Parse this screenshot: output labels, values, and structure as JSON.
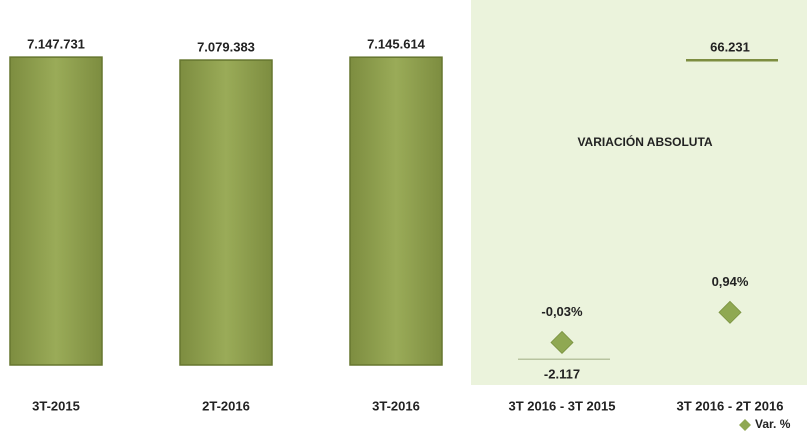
{
  "chart_data": [
    {
      "type": "bar",
      "categories": [
        "3T-2015",
        "2T-2016",
        "3T-2016"
      ],
      "values": [
        7147731,
        7079383,
        7145614
      ],
      "value_labels": [
        "7.147.731",
        "7.079.383",
        "7.145.614"
      ],
      "color": "#8a9b4b",
      "ylim": [
        0,
        7150000
      ]
    },
    {
      "type": "variation",
      "title": "VARIACIÓN ABSOLUTA",
      "categories": [
        "3T 2016 - 3T 2015",
        "3T 2016 - 2T 2016"
      ],
      "series": [
        {
          "name": "VARIACIÓN ABSOLUTA",
          "color": "#9bb06a",
          "values": [
            -2117,
            66231
          ],
          "value_labels": [
            "-2.117",
            "66.231"
          ]
        },
        {
          "name": "Var. %",
          "color": "#8fa852",
          "values": [
            -0.03,
            0.94
          ],
          "value_labels": [
            "-0,03%",
            "0,94%"
          ],
          "axis": "y2"
        }
      ],
      "ylim": [
        -8000,
        80000
      ],
      "y2lim": [
        -1.4,
        11
      ],
      "legend": "bottom-right",
      "background": "#ebf3dc"
    }
  ]
}
